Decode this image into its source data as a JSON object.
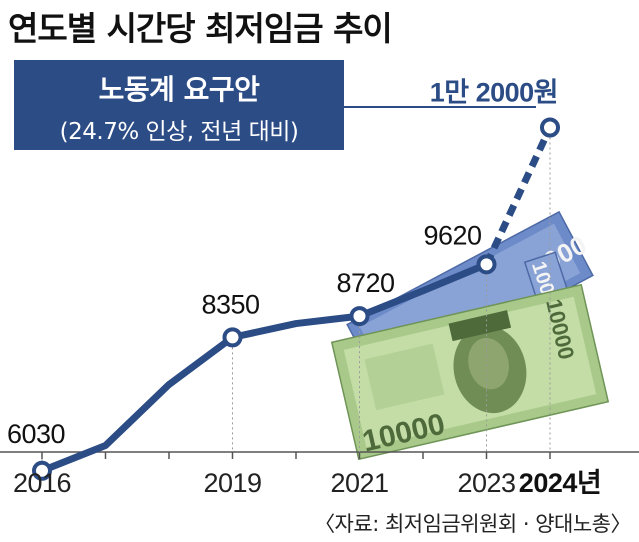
{
  "title": "연도별 시간당 최저임금 추이",
  "callout": {
    "line1": "노동계 요구안",
    "line2": "(24.7% 인상, 전년 대비)"
  },
  "source": "〈자료: 최저임금위원회 · 양대노총〉",
  "colors": {
    "series": "#2c4c86",
    "grid": "#9a9a9a",
    "text": "#111111"
  },
  "chart_data": {
    "type": "line",
    "title": "연도별 시간당 최저임금 추이",
    "xlabel": "",
    "ylabel": "",
    "x": [
      2016,
      2017,
      2018,
      2019,
      2020,
      2021,
      2022,
      2023,
      2024
    ],
    "values": [
      6030,
      6470,
      7530,
      8350,
      8590,
      8720,
      9160,
      9620,
      12000
    ],
    "labeled_points": [
      {
        "x": 2016,
        "label": "6030"
      },
      {
        "x": 2019,
        "label": "8350"
      },
      {
        "x": 2021,
        "label": "8720"
      },
      {
        "x": 2023,
        "label": "9620"
      },
      {
        "x": 2024,
        "label": "1만 2000원"
      }
    ],
    "x_tick_labels": [
      {
        "x": 2016,
        "label": "2016"
      },
      {
        "x": 2019,
        "label": "2019"
      },
      {
        "x": 2021,
        "label": "2021"
      },
      {
        "x": 2023,
        "label": "2023"
      },
      {
        "x": 2024,
        "label": "2024년"
      }
    ],
    "projected_from": 2023,
    "ylim": [
      5000,
      13000
    ],
    "grid": false,
    "legend": "none"
  }
}
